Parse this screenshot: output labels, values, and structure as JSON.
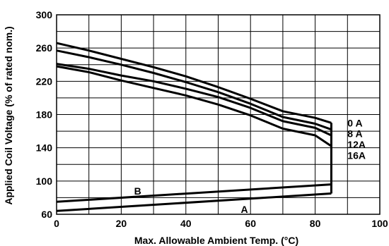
{
  "chart_data": {
    "type": "line",
    "xlabel": "Max. Allowable Ambient Temp. (°C)",
    "ylabel": "Applied Coil Voltage (% of rated nom.)",
    "xlim": [
      0,
      100
    ],
    "ylim": [
      60,
      300
    ],
    "x_ticks": [
      0,
      20,
      40,
      60,
      80,
      100
    ],
    "y_ticks": [
      60,
      100,
      140,
      180,
      220,
      260,
      300
    ],
    "x_grid_step": 10,
    "y_grid_step": 20,
    "grid": true,
    "series": [
      {
        "name": "0 A",
        "x": [
          0,
          10,
          20,
          30,
          40,
          50,
          60,
          70,
          80,
          85
        ],
        "y": [
          266,
          257,
          247,
          237,
          226,
          213,
          199,
          184,
          176,
          170
        ]
      },
      {
        "name": "8 A",
        "x": [
          0,
          10,
          20,
          30,
          40,
          50,
          60,
          70,
          80,
          85
        ],
        "y": [
          257,
          249,
          240,
          230,
          219,
          207,
          193,
          177,
          169,
          162
        ]
      },
      {
        "name": "12A",
        "x": [
          0,
          10,
          20,
          30,
          40,
          50,
          60,
          70,
          80,
          85
        ],
        "y": [
          241,
          235,
          227,
          220,
          211,
          201,
          188,
          172,
          164,
          155
        ]
      },
      {
        "name": "16A",
        "x": [
          0,
          10,
          20,
          30,
          40,
          50,
          60,
          70,
          80,
          85
        ],
        "y": [
          238,
          231,
          221,
          212,
          203,
          192,
          179,
          163,
          155,
          142
        ]
      },
      {
        "name": "B",
        "x": [
          0,
          85
        ],
        "y": [
          75,
          96
        ]
      },
      {
        "name": "A",
        "x": [
          0,
          85
        ],
        "y": [
          64,
          85
        ]
      }
    ],
    "vertical_connector": {
      "x": 85,
      "y": [
        85,
        170
      ]
    },
    "annotations": [
      {
        "text": "0 A",
        "x": 90,
        "y": 170
      },
      {
        "text": "8 A",
        "x": 90,
        "y": 157
      },
      {
        "text": "12A",
        "x": 90,
        "y": 144
      },
      {
        "text": "16A",
        "x": 90,
        "y": 131
      },
      {
        "text": "B",
        "x": 24,
        "y": 88
      },
      {
        "text": "A",
        "x": 57,
        "y": 66
      }
    ]
  }
}
